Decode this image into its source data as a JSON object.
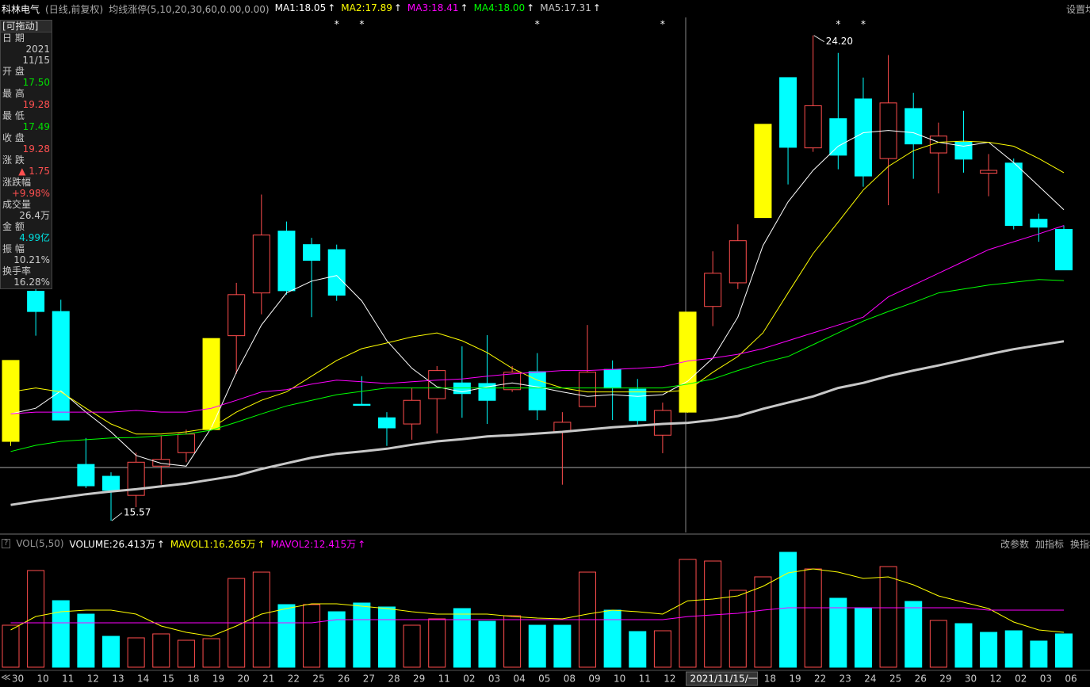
{
  "header": {
    "stock": "科林电气",
    "mode": "(日线,前复权)",
    "indicator": "均线涨停(5,10,20,30,60,0.00,0.00)",
    "settings": "设置均线"
  },
  "info_panel": {
    "title": "[可拖动]",
    "rows": [
      {
        "label": "日 期",
        "values": [
          "2021",
          "11/15"
        ],
        "color": "#cccccc"
      },
      {
        "label": "开 盘",
        "values": [
          "17.50"
        ],
        "color": "#00e000"
      },
      {
        "label": "最 高",
        "values": [
          "19.28"
        ],
        "color": "#ff5050"
      },
      {
        "label": "最 低",
        "values": [
          "17.49"
        ],
        "color": "#00e000"
      },
      {
        "label": "收 盘",
        "values": [
          "19.28"
        ],
        "color": "#ff5050"
      },
      {
        "label": "涨 跌",
        "values": [
          "▲ 1.75"
        ],
        "color": "#ff5050"
      },
      {
        "label": "涨跌幅",
        "values": [
          "+9.98%"
        ],
        "color": "#ff5050"
      },
      {
        "label": "成交量",
        "values": [
          "26.4万"
        ],
        "color": "#cccccc"
      },
      {
        "label": "金 额",
        "values": [
          "4.99亿"
        ],
        "color": "#00e0e0"
      },
      {
        "label": "振 幅",
        "values": [
          "10.21%"
        ],
        "color": "#cccccc"
      },
      {
        "label": "换手率",
        "values": [
          "16.28%"
        ],
        "color": "#cccccc"
      }
    ]
  },
  "chart_data": [
    {
      "type": "candlestick",
      "categories": [
        "30",
        "10",
        "11",
        "12",
        "13",
        "14",
        "15",
        "18",
        "19",
        "20",
        "21",
        "22",
        "25",
        "26",
        "27",
        "28",
        "29",
        "11",
        "02",
        "03",
        "04",
        "05",
        "08",
        "09",
        "10",
        "11",
        "12",
        "2021/11/15/一",
        null,
        null,
        "18",
        "19",
        "22",
        "23",
        "24",
        "25",
        "26",
        "29",
        "30",
        "12",
        "02",
        "03",
        "06"
      ],
      "cursor_index": 27,
      "open": [
        16.98,
        19.65,
        19.29,
        16.57,
        16.36,
        16.02,
        16.54,
        16.78,
        17.19,
        18.86,
        19.62,
        20.72,
        20.48,
        20.39,
        17.64,
        17.4,
        17.29,
        17.74,
        18.02,
        18.01,
        17.9,
        18.22,
        17.15,
        17.6,
        18.26,
        17.91,
        17.09,
        17.5,
        19.38,
        19.8,
        20.96,
        23.45,
        22.2,
        22.72,
        23.07,
        22.01,
        22.9,
        22.11,
        22.3,
        21.75,
        21.93,
        20.93,
        20.75
      ],
      "high": [
        18.42,
        19.7,
        19.5,
        17.04,
        16.43,
        16.78,
        17.08,
        17.19,
        18.81,
        19.8,
        21.37,
        20.89,
        20.6,
        20.48,
        18.14,
        17.5,
        17.93,
        18.32,
        18.67,
        18.87,
        18.32,
        18.55,
        17.5,
        19.05,
        18.42,
        18.09,
        17.67,
        19.28,
        20.36,
        20.84,
        22.62,
        23.45,
        24.2,
        23.89,
        23.45,
        23.85,
        23.18,
        22.65,
        22.86,
        22.09,
        22.01,
        21.03,
        20.82
      ],
      "low": [
        16.9,
        18.86,
        17.36,
        16.15,
        15.57,
        15.81,
        16.21,
        16.61,
        17.19,
        18.18,
        19.24,
        19.59,
        19.19,
        19.48,
        17.62,
        16.9,
        17.01,
        17.12,
        17.4,
        17.29,
        17.86,
        17.36,
        16.21,
        17.6,
        17.36,
        17.28,
        16.77,
        17.49,
        19.03,
        19.69,
        20.96,
        21.55,
        22.13,
        21.82,
        21.51,
        21.18,
        21.65,
        21.39,
        21.76,
        21.34,
        20.75,
        20.53,
        20.03
      ],
      "close": [
        18.42,
        19.29,
        17.36,
        16.19,
        16.11,
        16.61,
        16.66,
        17.11,
        18.81,
        19.59,
        20.65,
        19.66,
        20.2,
        19.58,
        17.62,
        17.22,
        17.71,
        18.24,
        17.83,
        17.71,
        18.21,
        17.54,
        17.32,
        18.21,
        17.93,
        17.35,
        17.53,
        19.28,
        19.97,
        20.55,
        22.62,
        22.21,
        22.95,
        22.07,
        21.7,
        23.0,
        22.27,
        22.41,
        22.0,
        21.8,
        20.82,
        20.79,
        20.03
      ],
      "colors": [
        "#ffff00",
        "#00ffff",
        "#00ffff",
        "#00ffff",
        "#00ffff",
        "#ff4d4d",
        "#ff4d4d",
        "#ff4d4d",
        "#ffff00",
        "#ff4d4d",
        "#ff4d4d",
        "#00ffff",
        "#00ffff",
        "#00ffff",
        "#00ffff",
        "#00ffff",
        "#ff4d4d",
        "#ff4d4d",
        "#00ffff",
        "#00ffff",
        "#ff4d4d",
        "#00ffff",
        "#ff4d4d",
        "#ff4d4d",
        "#00ffff",
        "#00ffff",
        "#ff4d4d",
        "#ffff00",
        "#ff4d4d",
        "#ff4d4d",
        "#ffff00",
        "#00ffff",
        "#ff4d4d",
        "#00ffff",
        "#00ffff",
        "#ff4d4d",
        "#00ffff",
        "#ff4d4d",
        "#00ffff",
        "#ff4d4d",
        "#00ffff",
        "#00ffff",
        "#00ffff"
      ],
      "hollow_color": "#ff4d4d",
      "ylim": [
        15.36,
        24.52
      ],
      "legend_arrow": "↑",
      "star": "*",
      "star_indices": [
        13,
        14,
        21,
        26,
        33,
        34
      ],
      "annotations": [
        {
          "text": "24.20",
          "index": 32,
          "at": "high"
        },
        {
          "text": "15.57",
          "index": 4,
          "at": "low"
        }
      ],
      "series": [
        {
          "name": "MA1:18.05",
          "color": "#ffffff",
          "width": 1,
          "values": [
            17.47,
            17.57,
            17.88,
            17.5,
            17.15,
            16.73,
            16.59,
            16.54,
            17.22,
            18.21,
            19.05,
            19.62,
            19.83,
            19.93,
            19.48,
            18.77,
            18.28,
            17.95,
            17.86,
            17.95,
            18.02,
            17.95,
            17.86,
            17.78,
            17.81,
            17.78,
            17.81,
            18.05,
            18.46,
            19.19,
            20.46,
            21.24,
            21.8,
            22.23,
            22.47,
            22.51,
            22.47,
            22.3,
            22.23,
            22.3,
            21.94,
            21.52,
            21.1
          ]
        },
        {
          "name": "MA2:17.89",
          "color": "#ffff00",
          "width": 1,
          "values": [
            17.86,
            17.93,
            17.86,
            17.57,
            17.29,
            17.11,
            17.11,
            17.15,
            17.22,
            17.5,
            17.71,
            17.86,
            18.14,
            18.42,
            18.63,
            18.73,
            18.84,
            18.91,
            18.77,
            18.56,
            18.28,
            18.07,
            17.93,
            17.86,
            17.86,
            17.86,
            17.86,
            17.89,
            18.21,
            18.49,
            18.91,
            19.62,
            20.32,
            20.88,
            21.45,
            21.87,
            22.15,
            22.3,
            22.32,
            22.3,
            22.23,
            22.01,
            21.76
          ]
        },
        {
          "name": "MA3:18.41",
          "color": "#ff00ff",
          "width": 1,
          "values": [
            17.47,
            17.5,
            17.5,
            17.5,
            17.5,
            17.53,
            17.5,
            17.5,
            17.57,
            17.71,
            17.86,
            17.9,
            18.0,
            18.07,
            18.04,
            18.01,
            18.04,
            18.07,
            18.09,
            18.14,
            18.18,
            18.21,
            18.24,
            18.24,
            18.26,
            18.28,
            18.31,
            18.41,
            18.46,
            18.53,
            18.63,
            18.77,
            18.91,
            19.05,
            19.19,
            19.55,
            19.76,
            19.97,
            20.18,
            20.39,
            20.53,
            20.67,
            20.82
          ]
        },
        {
          "name": "MA4:18.00",
          "color": "#00ff00",
          "width": 1,
          "values": [
            16.8,
            16.91,
            16.98,
            17.01,
            17.04,
            17.05,
            17.08,
            17.11,
            17.18,
            17.32,
            17.47,
            17.61,
            17.71,
            17.81,
            17.87,
            17.93,
            17.93,
            17.93,
            17.93,
            17.93,
            17.93,
            17.93,
            17.93,
            17.93,
            17.93,
            17.93,
            17.93,
            18.0,
            18.09,
            18.24,
            18.38,
            18.49,
            18.7,
            18.91,
            19.12,
            19.29,
            19.45,
            19.62,
            19.69,
            19.76,
            19.81,
            19.86,
            19.84
          ]
        },
        {
          "name": "MA5:17.31",
          "color": "#c8c8c8",
          "width": 3,
          "values": [
            15.85,
            15.92,
            15.98,
            16.04,
            16.09,
            16.13,
            16.18,
            16.23,
            16.3,
            16.37,
            16.49,
            16.59,
            16.69,
            16.76,
            16.8,
            16.85,
            16.92,
            16.98,
            17.02,
            17.07,
            17.09,
            17.12,
            17.15,
            17.19,
            17.23,
            17.26,
            17.29,
            17.31,
            17.36,
            17.43,
            17.56,
            17.67,
            17.78,
            17.93,
            18.02,
            18.14,
            18.24,
            18.33,
            18.43,
            18.53,
            18.62,
            18.69,
            18.76
          ]
        }
      ]
    },
    {
      "type": "bar",
      "title": "VOL(5,50)",
      "help": "?",
      "volume_label": "VOLUME:26.413万",
      "legend_arrow": "↑",
      "tools": [
        "改参数",
        "加指标",
        "换指标"
      ],
      "scroll": "≪",
      "values": [
        10.29,
        23.69,
        16.31,
        13.01,
        7.57,
        7.19,
        8.16,
        6.6,
        6.99,
        21.75,
        23.3,
        15.34,
        15.34,
        13.59,
        15.73,
        14.76,
        10.29,
        11.85,
        14.37,
        11.26,
        12.62,
        10.29,
        10.29,
        23.3,
        13.98,
        8.74,
        8.93,
        26.413,
        26.02,
        18.84,
        22.14,
        28.16,
        24.08,
        16.9,
        14.57,
        24.66,
        16.12,
        11.46,
        10.68,
        8.54,
        8.93,
        6.41,
        8.16
      ],
      "colors": [
        "#ff4d4d",
        "#ff4d4d",
        "#00ffff",
        "#00ffff",
        "#00ffff",
        "#ff4d4d",
        "#ff4d4d",
        "#ff4d4d",
        "#ff4d4d",
        "#ff4d4d",
        "#ff4d4d",
        "#00ffff",
        "#ff4d4d",
        "#00ffff",
        "#00ffff",
        "#00ffff",
        "#ff4d4d",
        "#ff4d4d",
        "#00ffff",
        "#00ffff",
        "#ff4d4d",
        "#00ffff",
        "#00ffff",
        "#ff4d4d",
        "#00ffff",
        "#00ffff",
        "#ff4d4d",
        "#ff4d4d",
        "#ff4d4d",
        "#ff4d4d",
        "#ff4d4d",
        "#00ffff",
        "#ff4d4d",
        "#00ffff",
        "#00ffff",
        "#ff4d4d",
        "#00ffff",
        "#ff4d4d",
        "#00ffff",
        "#00ffff",
        "#00ffff",
        "#00ffff",
        "#00ffff"
      ],
      "hollow_color": "#ff4d4d",
      "ylim": [
        0,
        29.13
      ],
      "series": [
        {
          "name": "MAVOL1:16.265万",
          "color": "#ffff00",
          "width": 1,
          "values": [
            9.13,
            12.43,
            13.59,
            13.98,
            13.98,
            13.01,
            10.1,
            8.54,
            7.57,
            10.1,
            13.01,
            14.37,
            15.54,
            15.54,
            14.95,
            14.37,
            13.59,
            13.01,
            13.01,
            13.01,
            12.43,
            12.04,
            11.85,
            13.01,
            13.98,
            13.59,
            13.01,
            16.265,
            16.7,
            17.48,
            19.81,
            23.11,
            24.08,
            23.3,
            21.75,
            22.14,
            20.2,
            17.48,
            15.92,
            14.37,
            11.07,
            9.13,
            8.54
          ]
        },
        {
          "name": "MAVOL2:12.415万",
          "color": "#ff00ff",
          "width": 1,
          "values": [
            10.87,
            10.87,
            10.87,
            10.87,
            10.87,
            10.87,
            10.87,
            10.87,
            10.87,
            10.87,
            10.87,
            10.87,
            10.87,
            11.65,
            11.65,
            11.65,
            11.65,
            11.65,
            11.65,
            11.65,
            11.65,
            11.65,
            11.65,
            11.65,
            11.65,
            11.65,
            11.65,
            12.415,
            12.82,
            13.21,
            13.98,
            14.57,
            14.57,
            14.57,
            14.57,
            14.57,
            14.57,
            14.57,
            14.57,
            13.98,
            13.98,
            13.98,
            13.98
          ]
        }
      ]
    }
  ]
}
